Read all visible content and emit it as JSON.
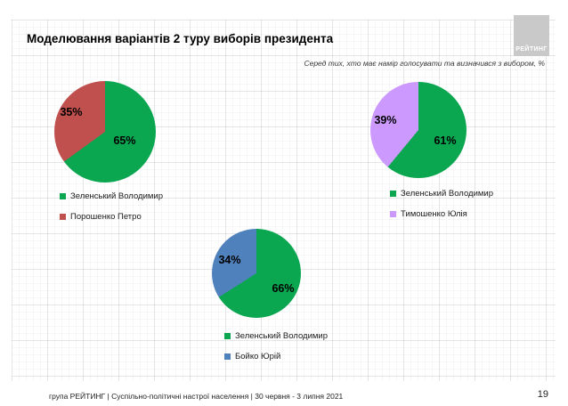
{
  "slide": {
    "title": "Моделювання варіантів 2 туру виборів президента",
    "subtitle": "Серед тих, хто має намір голосувати та визначився з вибором, %",
    "logo_text": "РЕЙТИНГ",
    "footer_text": "група РЕЙТИНГ | Суспільно-політичні настрої населення  | 30 червня - 3 липня 2021",
    "page_number": "19"
  },
  "colors": {
    "green": "#0aa650",
    "red": "#c0504d",
    "purple": "#cc99ff",
    "blue": "#4f81bd",
    "logo_gray": "#c9c9c9"
  },
  "chart_data": [
    {
      "type": "pie",
      "labels": [
        "Зеленський Володимир",
        "Порошенко Петро"
      ],
      "values": [
        65,
        35
      ],
      "value_labels": [
        "65%",
        "35%"
      ],
      "colors": [
        "#0aa650",
        "#c0504d"
      ],
      "start_angle_deg": 0,
      "direction": "clockwise",
      "legend_position": "bottom"
    },
    {
      "type": "pie",
      "labels": [
        "Зеленський Володимир",
        "Тимошенко Юлія"
      ],
      "values": [
        61,
        39
      ],
      "value_labels": [
        "61%",
        "39%"
      ],
      "colors": [
        "#0aa650",
        "#cc99ff"
      ],
      "start_angle_deg": 0,
      "direction": "clockwise",
      "legend_position": "bottom"
    },
    {
      "type": "pie",
      "labels": [
        "Зеленський Володимир",
        "Бойко Юрій"
      ],
      "values": [
        66,
        34
      ],
      "value_labels": [
        "66%",
        "34%"
      ],
      "colors": [
        "#0aa650",
        "#4f81bd"
      ],
      "start_angle_deg": 0,
      "direction": "clockwise",
      "legend_position": "bottom"
    }
  ]
}
